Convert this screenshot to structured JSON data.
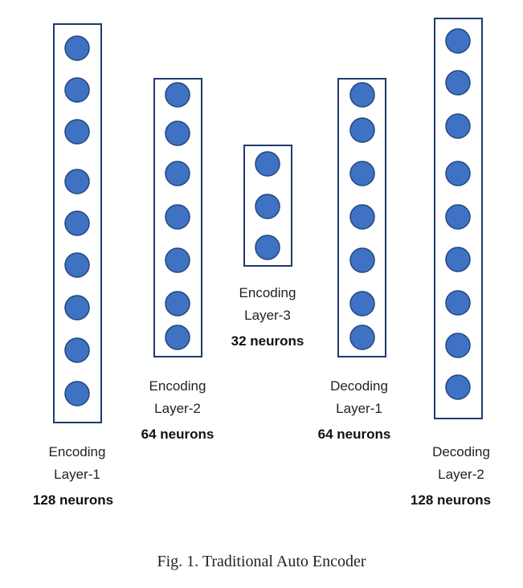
{
  "colors": {
    "box_stroke": "#1f3a6e",
    "box_stroke_light": "#3b6fb0",
    "neuron_fill": "#3f72c2",
    "neuron_stroke": "#23467f"
  },
  "layers": [
    {
      "name": "Encoding",
      "sub": "Layer-1",
      "neurons": "128 neurons",
      "circles": 9
    },
    {
      "name": "Encoding",
      "sub": "Layer-2",
      "neurons": "64 neurons",
      "circles": 7
    },
    {
      "name": "Encoding",
      "sub": "Layer-3",
      "neurons": "32 neurons",
      "circles": 3
    },
    {
      "name": "Decoding",
      "sub": "Layer-1",
      "neurons": "64 neurons",
      "circles": 7
    },
    {
      "name": "Decoding",
      "sub": "Layer-2",
      "neurons": "128 neurons",
      "circles": 9
    }
  ],
  "caption": "Fig. 1.  Traditional Auto Encoder"
}
